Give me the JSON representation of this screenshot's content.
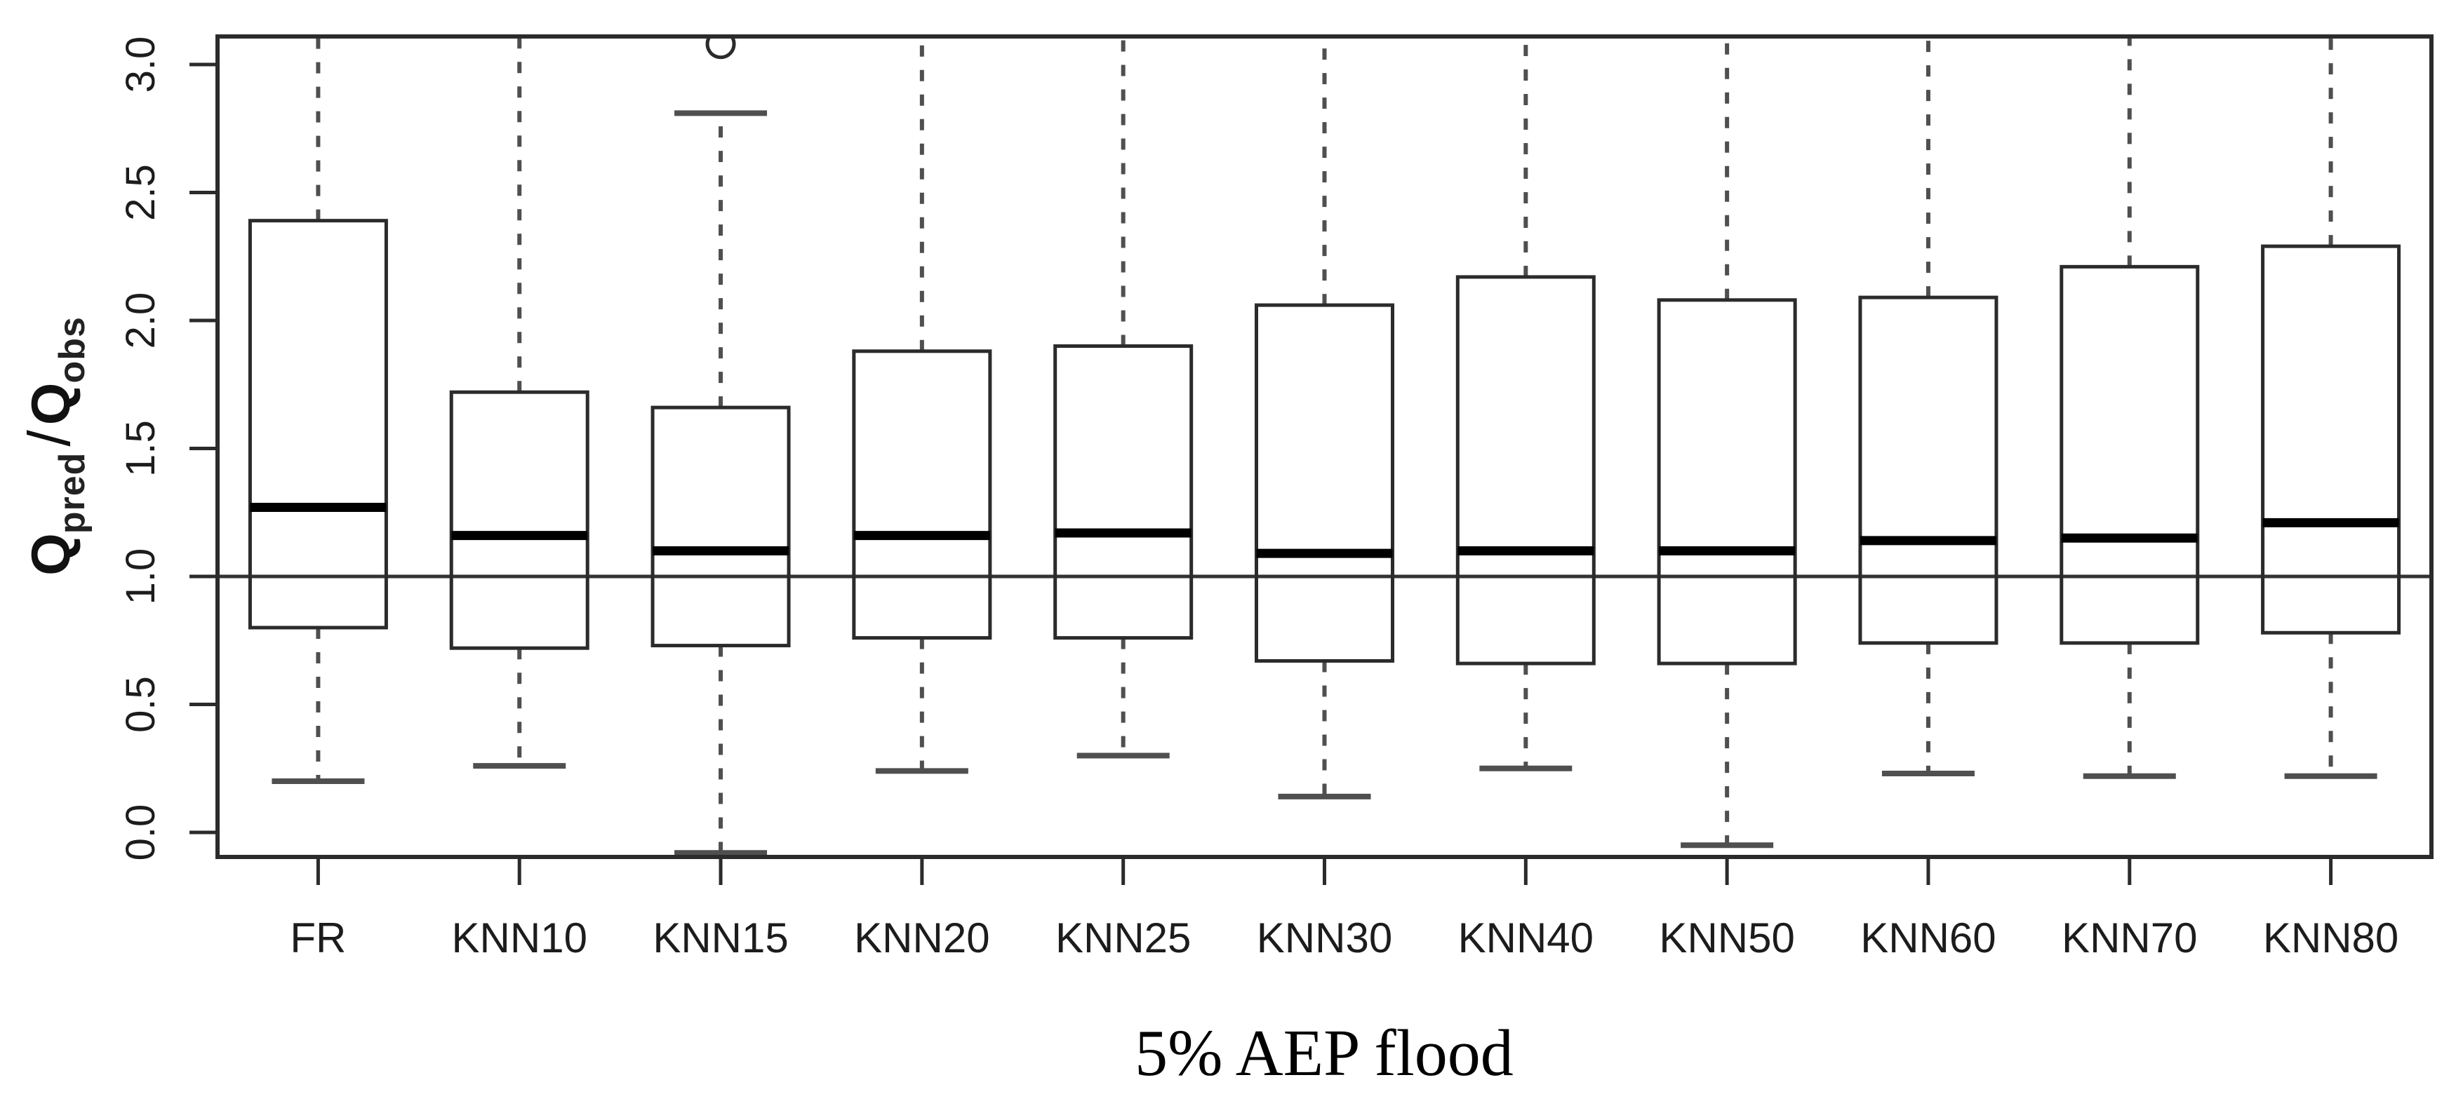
{
  "chart_data": {
    "type": "boxplot",
    "title": "",
    "xlabel": "5% AEP flood",
    "ylabel": "Qpred/Qobs",
    "ylabel_rich": {
      "q1_main": "Q",
      "q1_sub": "pred",
      "slash": "/",
      "q2_main": "Q",
      "q2_sub": "obs"
    },
    "ylim": [
      -0.12,
      3.11
    ],
    "yticks": [
      0.0,
      0.5,
      1.0,
      1.5,
      2.0,
      2.5,
      3.0
    ],
    "ytick_labels": [
      "0.0",
      "0.5",
      "1.0",
      "1.5",
      "2.0",
      "2.5",
      "3.0"
    ],
    "reference_line": 1.0,
    "grid": false,
    "legend": null,
    "categories": [
      "FR",
      "KNN10",
      "KNN15",
      "KNN20",
      "KNN25",
      "KNN30",
      "KNN40",
      "KNN50",
      "KNN60",
      "KNN70",
      "KNN80"
    ],
    "boxes": [
      {
        "category": "FR",
        "whisker_low": 0.2,
        "q1": 0.8,
        "median": 1.27,
        "q3": 2.39,
        "whisker_high": null,
        "whisker_high_clipped": true,
        "outliers": []
      },
      {
        "category": "KNN10",
        "whisker_low": 0.26,
        "q1": 0.72,
        "median": 1.16,
        "q3": 1.72,
        "whisker_high": null,
        "whisker_high_clipped": true,
        "outliers": []
      },
      {
        "category": "KNN15",
        "whisker_low": -0.08,
        "q1": 0.73,
        "median": 1.1,
        "q3": 1.66,
        "whisker_high": 2.81,
        "whisker_high_clipped": false,
        "outliers": [
          3.08
        ]
      },
      {
        "category": "KNN20",
        "whisker_low": 0.24,
        "q1": 0.76,
        "median": 1.16,
        "q3": 1.88,
        "whisker_high": null,
        "whisker_high_clipped": true,
        "outliers": []
      },
      {
        "category": "KNN25",
        "whisker_low": 0.3,
        "q1": 0.76,
        "median": 1.17,
        "q3": 1.9,
        "whisker_high": null,
        "whisker_high_clipped": true,
        "outliers": []
      },
      {
        "category": "KNN30",
        "whisker_low": 0.14,
        "q1": 0.67,
        "median": 1.09,
        "q3": 2.06,
        "whisker_high": null,
        "whisker_high_clipped": true,
        "outliers": []
      },
      {
        "category": "KNN40",
        "whisker_low": 0.25,
        "q1": 0.66,
        "median": 1.1,
        "q3": 2.17,
        "whisker_high": null,
        "whisker_high_clipped": true,
        "outliers": []
      },
      {
        "category": "KNN50",
        "whisker_low": -0.05,
        "q1": 0.66,
        "median": 1.1,
        "q3": 2.08,
        "whisker_high": null,
        "whisker_high_clipped": true,
        "outliers": []
      },
      {
        "category": "KNN60",
        "whisker_low": 0.23,
        "q1": 0.74,
        "median": 1.14,
        "q3": 2.09,
        "whisker_high": null,
        "whisker_high_clipped": true,
        "outliers": []
      },
      {
        "category": "KNN70",
        "whisker_low": 0.22,
        "q1": 0.74,
        "median": 1.15,
        "q3": 2.21,
        "whisker_high": null,
        "whisker_high_clipped": true,
        "outliers": []
      },
      {
        "category": "KNN80",
        "whisker_low": 0.22,
        "q1": 0.78,
        "median": 1.21,
        "q3": 2.29,
        "whisker_high": null,
        "whisker_high_clipped": true,
        "outliers": []
      }
    ],
    "colors": {
      "background": "#ffffff",
      "frame": "#2b2b2b",
      "box_stroke": "#2b2b2b",
      "median": "#000000",
      "whisker": "#4f4f4f",
      "reference_line": "#333333",
      "text": "#1c1c1c"
    }
  }
}
